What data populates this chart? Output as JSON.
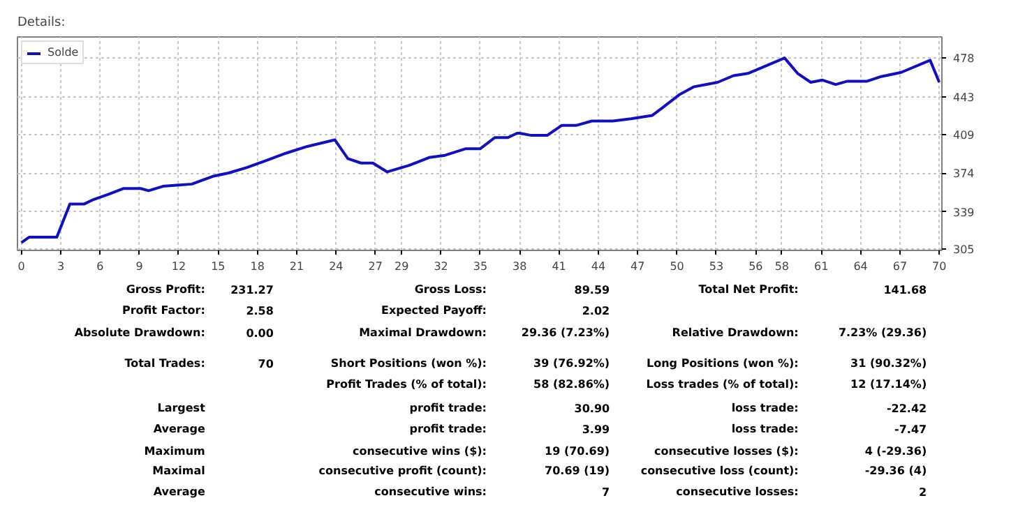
{
  "chart_data": {
    "type": "line",
    "title": "Details:",
    "xlim": [
      -0.3,
      70.2
    ],
    "ylim": [
      304,
      497
    ],
    "xticks": [
      0,
      3,
      6,
      9,
      12,
      15,
      18,
      21,
      24,
      27,
      29,
      32,
      35,
      38,
      41,
      44,
      47,
      50,
      53,
      56,
      58,
      61,
      64,
      67,
      70
    ],
    "yticks": [
      305,
      339,
      374,
      409,
      443,
      478
    ],
    "grid": true,
    "legend": "top left",
    "series": [
      {
        "name": "Solde",
        "color": "#1010c0",
        "x": [
          0,
          0.6,
          2.7,
          3.7,
          4.8,
          5.5,
          6.7,
          7.8,
          9.1,
          9.7,
          10.8,
          13.0,
          14.6,
          15.8,
          17.2,
          18.6,
          20.2,
          21.8,
          23.9,
          24.9,
          25.9,
          26.8,
          27.9,
          29.6,
          31.1,
          32.3,
          33.9,
          35.0,
          36.1,
          37.1,
          37.8,
          38.0,
          38.9,
          40.1,
          41.2,
          42.3,
          43.5,
          45.1,
          46.5,
          48.1,
          49.0,
          50.2,
          51.3,
          53.1,
          54.3,
          55.4,
          56.6,
          58.2,
          59.2,
          60.2,
          61.1,
          62.1,
          63.0,
          64.5,
          65.5,
          67.1,
          69.3,
          70
        ],
        "values": [
          311,
          316,
          316,
          346,
          346,
          350,
          355,
          360,
          360,
          358,
          362,
          364,
          371,
          374,
          379,
          385,
          392,
          398,
          404,
          387,
          383,
          383,
          375,
          381,
          388,
          390,
          396,
          396,
          406,
          406,
          410,
          410,
          408,
          408,
          417,
          417,
          421,
          421,
          423,
          426,
          434,
          445,
          452,
          456,
          462,
          464,
          470,
          478,
          464,
          456,
          458,
          454,
          457,
          457,
          461,
          465,
          476,
          456
        ]
      }
    ],
    "annotations": [
      "Gross Profit:",
      "231.27",
      "Gross Loss:",
      "89.59",
      "Total Net Profit:",
      "141.68",
      "Profit Factor:",
      "2.58",
      "Expected Payoff:",
      "2.02",
      "Absolute Drawdown:",
      "0.00",
      "Maximal Drawdown:",
      "29.36 (7.23%)",
      "Relative Drawdown:",
      "7.23% (29.36)",
      "Total Trades:",
      "70",
      "Short Positions (won %):",
      "39 (76.92%)",
      "Long Positions (won %):",
      "31 (90.32%)",
      "Profit Trades (% of total):",
      "58 (82.86%)",
      "Loss trades (% of total):",
      "12 (17.14%)",
      "Largest",
      "profit trade:",
      "30.90",
      "loss trade:",
      "-22.42",
      "Average",
      "profit trade:",
      "3.99",
      "loss trade:",
      "-7.47",
      "Maximum",
      "consecutive wins ($):",
      "19 (70.69)",
      "consecutive losses ($):",
      "4 (-29.36)",
      "Maximal",
      "consecutive profit (count):",
      "70.69 (19)",
      "consecutive loss (count):",
      "-29.36 (4)",
      "Average",
      "consecutive wins:",
      "7",
      "consecutive losses:",
      "2"
    ]
  }
}
